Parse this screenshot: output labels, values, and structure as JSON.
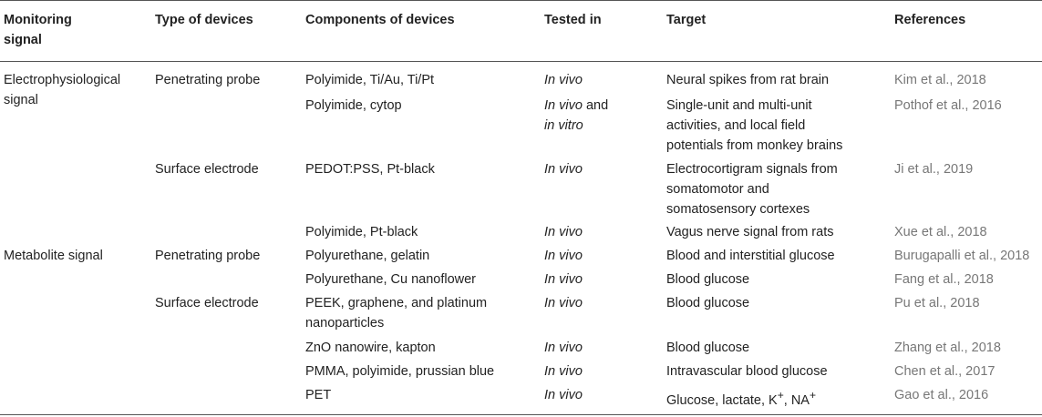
{
  "headers": {
    "monitoring_signal_line1": "Monitoring",
    "monitoring_signal_line2": "signal",
    "type_of_devices": "Type of devices",
    "components_of_devices": "Components of devices",
    "tested_in": "Tested in",
    "target": "Target",
    "references": "References"
  },
  "groups": {
    "electro_line1": "Electrophysiological",
    "electro_line2": "signal",
    "metabolite": "Metabolite signal"
  },
  "device_types": {
    "penetrating_probe": "Penetrating probe",
    "surface_electrode": "Surface electrode"
  },
  "rows": [
    {
      "components": [
        "Polyimide, Ti/Au, Ti/Pt"
      ],
      "tested": [
        "In vivo"
      ],
      "target": [
        "Neural spikes from rat brain"
      ],
      "ref": "Kim et al., 2018"
    },
    {
      "components": [
        "Polyimide, cytop"
      ],
      "tested": [
        "In vivo",
        " and",
        "in vitro"
      ],
      "target": [
        "Single-unit and multi-unit",
        "activities, and local field",
        "potentials from monkey brains"
      ],
      "ref": "Pothof et al., 2016"
    },
    {
      "components": [
        "PEDOT:PSS, Pt-black"
      ],
      "tested": [
        "In vivo"
      ],
      "target": [
        "Electrocortigram signals from",
        "somatomotor and",
        "somatosensory cortexes"
      ],
      "ref": "Ji et al., 2019"
    },
    {
      "components": [
        "Polyimide, Pt-black"
      ],
      "tested": [
        "In vivo"
      ],
      "target": [
        "Vagus nerve signal from rats"
      ],
      "ref": "Xue et al., 2018"
    },
    {
      "components": [
        "Polyurethane, gelatin"
      ],
      "tested": [
        "In vivo"
      ],
      "target": [
        "Blood and interstitial glucose"
      ],
      "ref": "Burugapalli et al., 2018"
    },
    {
      "components": [
        "Polyurethane, Cu nanoflower"
      ],
      "tested": [
        "In vivo"
      ],
      "target": [
        "Blood glucose"
      ],
      "ref": "Fang et al., 2018"
    },
    {
      "components": [
        "PEEK, graphene, and platinum",
        "nanoparticles"
      ],
      "tested": [
        "In vivo"
      ],
      "target": [
        "Blood glucose"
      ],
      "ref": "Pu et al., 2018"
    },
    {
      "components": [
        "ZnO nanowire, kapton"
      ],
      "tested": [
        "In vivo"
      ],
      "target": [
        "Blood glucose"
      ],
      "ref": "Zhang et al., 2018"
    },
    {
      "components": [
        "PMMA, polyimide, prussian blue"
      ],
      "tested": [
        "In vivo"
      ],
      "target": [
        "Intravascular blood glucose"
      ],
      "ref": "Chen et al., 2017"
    },
    {
      "components": [
        "PET"
      ],
      "tested": [
        "In vivo"
      ],
      "target": [
        "Glucose, lactate, K",
        "+",
        ", NA",
        "+"
      ],
      "ref": "Gao et al., 2016"
    }
  ]
}
